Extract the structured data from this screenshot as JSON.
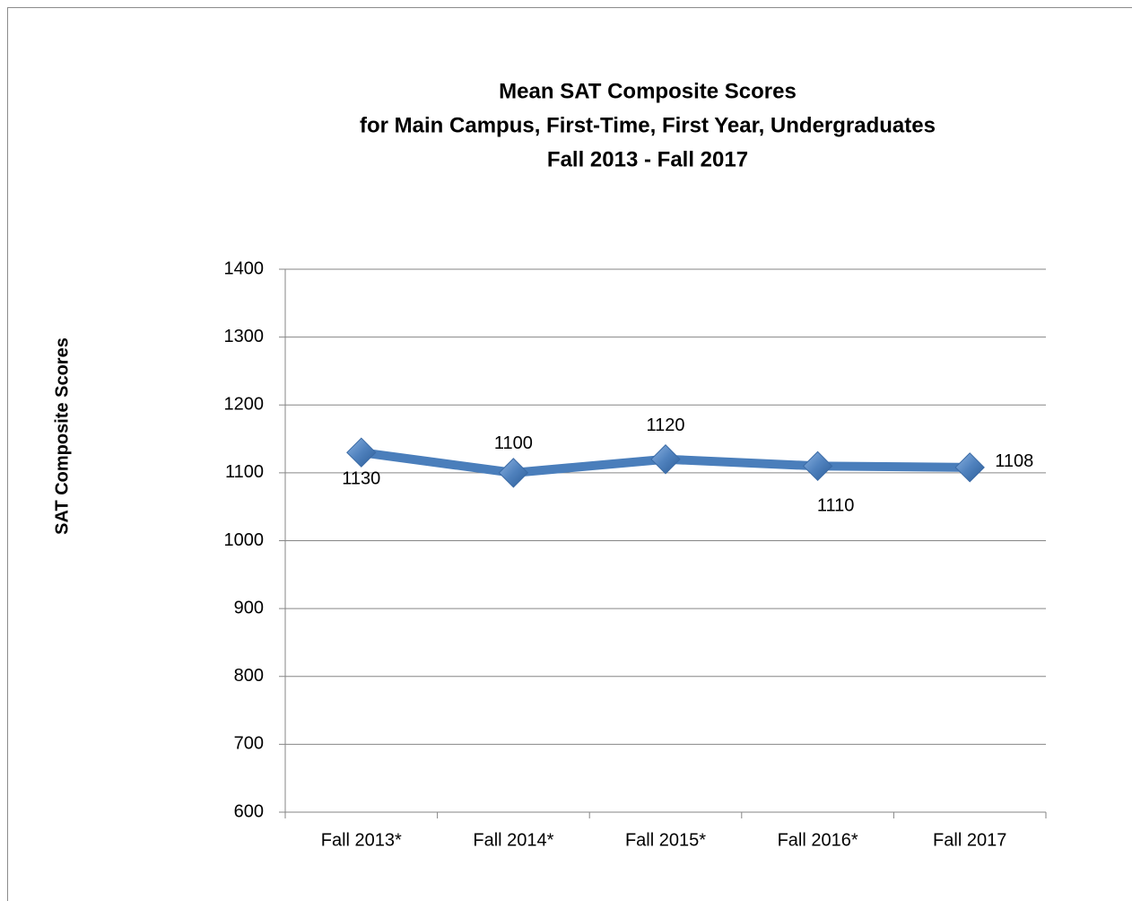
{
  "chart_data": {
    "type": "line",
    "title": [
      "Mean SAT Composite Scores",
      "for Main Campus, First-Time, First Year, Undergraduates",
      "Fall 2013 - Fall 2017"
    ],
    "y_label": "SAT Composite Scores",
    "categories": [
      "Fall 2013*",
      "Fall 2014*",
      "Fall 2015*",
      "Fall 2016*",
      "Fall 2017"
    ],
    "series": [
      {
        "name": "Mean SAT Composite Score",
        "color": "#4a7ebb",
        "values": [
          1130,
          1100,
          1120,
          1110,
          1108
        ]
      }
    ],
    "ylim": [
      600,
      1400
    ],
    "yticks": [
      600,
      700,
      800,
      900,
      1000,
      1100,
      1200,
      1300,
      1400
    ],
    "grid": true,
    "legend": false
  }
}
